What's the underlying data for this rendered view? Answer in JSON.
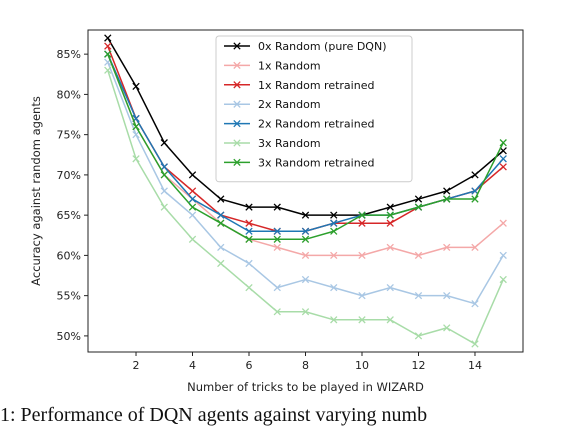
{
  "caption": "1: Performance of DQN agents against varying numb",
  "chart_data": {
    "type": "line",
    "title": "",
    "xlabel": "Number of tricks to be played in WIZARD",
    "ylabel": "Accuracy against random agents",
    "x": [
      1,
      2,
      3,
      4,
      5,
      6,
      7,
      8,
      9,
      10,
      11,
      12,
      13,
      14,
      15
    ],
    "xlim": [
      0.3,
      15.7
    ],
    "ylim": [
      48,
      88
    ],
    "xticks": [
      2,
      4,
      6,
      8,
      10,
      12,
      14
    ],
    "yticks": [
      50,
      55,
      60,
      65,
      70,
      75,
      80,
      85
    ],
    "ytick_format": "percent",
    "legend_position": "upper-center",
    "grid": false,
    "series": [
      {
        "name": "0x Random (pure DQN)",
        "color": "#000000",
        "marker": "x",
        "values": [
          87,
          81,
          74,
          70,
          67,
          66,
          66,
          65,
          65,
          65,
          66,
          67,
          68,
          70,
          73
        ]
      },
      {
        "name": "1x Random",
        "color": "#f4a8a8",
        "marker": "x",
        "values": [
          85,
          76,
          70,
          67,
          64,
          62,
          61,
          60,
          60,
          60,
          61,
          60,
          61,
          61,
          64
        ]
      },
      {
        "name": "1x Random retrained",
        "color": "#d62728",
        "marker": "x",
        "values": [
          86,
          77,
          71,
          68,
          65,
          64,
          63,
          63,
          64,
          64,
          64,
          66,
          67,
          68,
          71
        ]
      },
      {
        "name": "2x Random",
        "color": "#a9c7e4",
        "marker": "x",
        "values": [
          84,
          75,
          68,
          65,
          61,
          59,
          56,
          57,
          56,
          55,
          56,
          55,
          55,
          54,
          60
        ]
      },
      {
        "name": "2x Random retrained",
        "color": "#1f77b4",
        "marker": "x",
        "values": [
          85,
          77,
          71,
          67,
          65,
          63,
          63,
          63,
          64,
          65,
          65,
          66,
          67,
          68,
          72
        ]
      },
      {
        "name": "3x Random",
        "color": "#a8dca8",
        "marker": "x",
        "values": [
          83,
          72,
          66,
          62,
          59,
          56,
          53,
          53,
          52,
          52,
          52,
          50,
          51,
          49,
          57
        ]
      },
      {
        "name": "3x Random retrained",
        "color": "#2ca02c",
        "marker": "x",
        "values": [
          85,
          76,
          70,
          66,
          64,
          62,
          62,
          62,
          63,
          65,
          65,
          66,
          67,
          67,
          74
        ]
      }
    ]
  }
}
